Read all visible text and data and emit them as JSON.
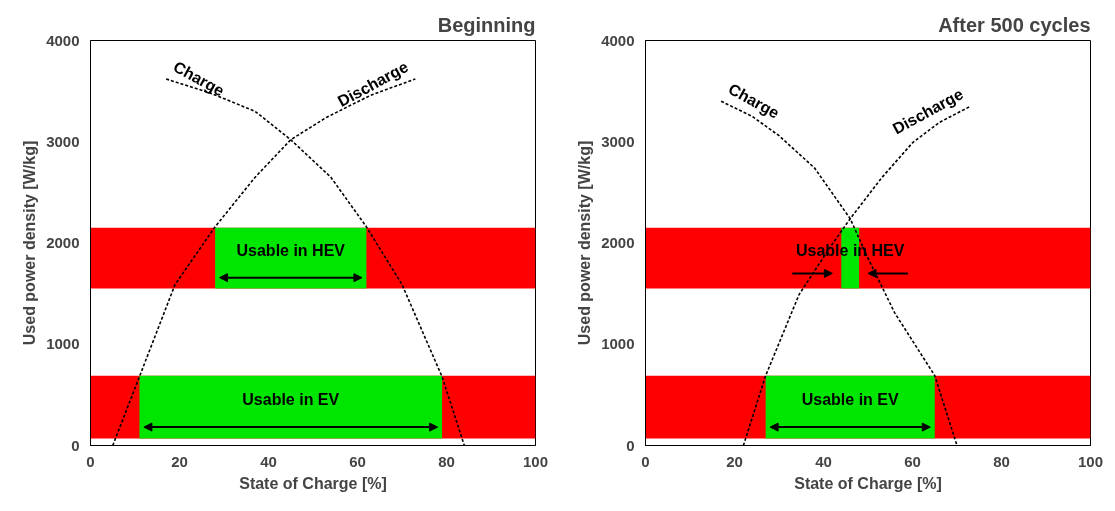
{
  "chart_data": [
    {
      "type": "line",
      "title": "Beginning",
      "xlabel": "State of Charge [%]",
      "ylabel": "Used power density [W/kg]",
      "xlim": [
        0,
        100
      ],
      "ylim": [
        0,
        4000
      ],
      "xticks": [
        0,
        20,
        40,
        60,
        80,
        100
      ],
      "yticks": [
        0,
        1000,
        2000,
        3000,
        4000
      ],
      "grid": false,
      "line_style": "dashed",
      "marker": "none",
      "series": [
        {
          "name": "Charge",
          "color": "#000000",
          "x": [
            17,
            27,
            37,
            45,
            54,
            62,
            70,
            79,
            84
          ],
          "values": [
            3620,
            3480,
            3300,
            3020,
            2650,
            2160,
            1590,
            680,
            0
          ]
        },
        {
          "name": "Discharge",
          "color": "#000000",
          "x": [
            5,
            11,
            19,
            28,
            37,
            45,
            53,
            63,
            73
          ],
          "values": [
            0,
            680,
            1590,
            2160,
            2650,
            3020,
            3240,
            3460,
            3620
          ]
        }
      ],
      "bands": [
        {
          "axis": "y",
          "from": 1550,
          "to": 2150,
          "color": "#ff0000"
        },
        {
          "axis": "y",
          "from": 70,
          "to": 690,
          "color": "#ff0000"
        },
        {
          "axis": "x",
          "from": 28,
          "to": 62,
          "label": "Usable in HEV",
          "color": "#00e600"
        },
        {
          "axis": "x",
          "from": 11,
          "to": 79,
          "label": "Usable in EV",
          "color": "#00e600"
        }
      ]
    },
    {
      "type": "line",
      "title": "After 500 cycles",
      "xlabel": "State of Charge [%]",
      "ylabel": "Used power density [W/kg]",
      "xlim": [
        0,
        100
      ],
      "ylim": [
        0,
        4000
      ],
      "xticks": [
        0,
        20,
        40,
        60,
        80,
        100
      ],
      "yticks": [
        0,
        1000,
        2000,
        3000,
        4000
      ],
      "grid": false,
      "line_style": "dashed",
      "marker": "none",
      "series": [
        {
          "name": "Charge",
          "color": "#000000",
          "x": [
            17,
            24,
            30,
            38,
            46,
            50,
            56,
            65,
            70
          ],
          "values": [
            3400,
            3250,
            3060,
            2740,
            2240,
            1850,
            1310,
            690,
            0
          ]
        },
        {
          "name": "Discharge",
          "color": "#000000",
          "x": [
            22,
            27,
            34.5,
            41.5,
            46,
            53,
            60,
            66,
            73
          ],
          "values": [
            0,
            690,
            1490,
            1960,
            2240,
            2640,
            2990,
            3190,
            3350
          ]
        }
      ],
      "bands": [
        {
          "axis": "y",
          "from": 1550,
          "to": 2150,
          "color": "#ff0000"
        },
        {
          "axis": "y",
          "from": 70,
          "to": 690,
          "color": "#ff0000"
        },
        {
          "axis": "x",
          "from": 44,
          "to": 48,
          "label": "Usable in HEV",
          "color": "#00e600"
        },
        {
          "axis": "x",
          "from": 27,
          "to": 65,
          "label": "Usable in EV",
          "color": "#00e600"
        }
      ]
    }
  ]
}
